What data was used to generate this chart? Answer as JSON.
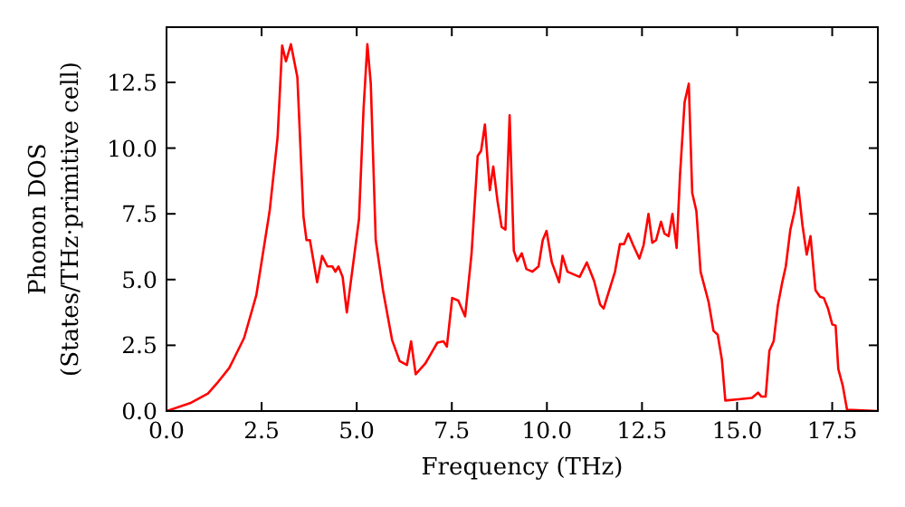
{
  "chart_data": {
    "type": "line",
    "xlabel": "Frequency (THz)",
    "ylabel": "Phonon DOS\n(States/THz·primitive cell)",
    "x": [
      0,
      0.62,
      1.09,
      1.33,
      1.65,
      2.04,
      2.36,
      2.71,
      2.92,
      3.04,
      3.14,
      3.27,
      3.44,
      3.6,
      3.68,
      3.77,
      3.96,
      4.09,
      4.23,
      4.36,
      4.44,
      4.52,
      4.63,
      4.74,
      5.06,
      5.18,
      5.28,
      5.37,
      5.5,
      5.69,
      5.93,
      6.13,
      6.32,
      6.43,
      6.55,
      6.8,
      6.96,
      7.12,
      7.28,
      7.37,
      7.51,
      7.67,
      7.85,
      8.02,
      8.18,
      8.27,
      8.37,
      8.5,
      8.59,
      8.7,
      8.81,
      8.91,
      9.02,
      9.13,
      9.22,
      9.34,
      9.46,
      9.62,
      9.78,
      9.89,
      9.99,
      10.13,
      10.32,
      10.41,
      10.54,
      10.86,
      11.05,
      11.24,
      11.4,
      11.49,
      11.79,
      11.92,
      12.03,
      12.14,
      12.27,
      12.43,
      12.54,
      12.67,
      12.77,
      12.87,
      13.0,
      13.09,
      13.2,
      13.3,
      13.41,
      13.5,
      13.62,
      13.73,
      13.82,
      13.93,
      14.04,
      14.25,
      14.38,
      14.49,
      14.6,
      14.69,
      15.04,
      15.39,
      15.55,
      15.64,
      15.75,
      15.85,
      15.96,
      16.07,
      16.18,
      16.28,
      16.4,
      16.51,
      16.61,
      16.72,
      16.83,
      16.93,
      17.06,
      17.18,
      17.28,
      17.39,
      17.5,
      17.59,
      17.66,
      17.78,
      17.89,
      18.69
    ],
    "series": [
      {
        "color": "#ff0000",
        "values": [
          0,
          0.3,
          0.67,
          1.06,
          1.64,
          2.78,
          4.4,
          7.6,
          10.4,
          13.9,
          13.3,
          13.95,
          12.7,
          7.4,
          6.5,
          6.5,
          4.9,
          5.9,
          5.5,
          5.5,
          5.3,
          5.5,
          5.1,
          3.75,
          7.3,
          11.5,
          13.95,
          12.45,
          6.5,
          4.6,
          2.7,
          1.9,
          1.75,
          2.65,
          1.4,
          1.8,
          2.2,
          2.6,
          2.65,
          2.45,
          4.3,
          4.2,
          3.6,
          6.0,
          9.7,
          9.9,
          10.9,
          8.4,
          9.3,
          8.0,
          7.0,
          6.9,
          11.25,
          6.1,
          5.7,
          6.0,
          5.4,
          5.3,
          5.5,
          6.5,
          6.85,
          5.65,
          4.9,
          5.9,
          5.3,
          5.1,
          5.65,
          4.95,
          4.05,
          3.9,
          5.3,
          6.35,
          6.35,
          6.75,
          6.3,
          5.8,
          6.3,
          7.5,
          6.4,
          6.5,
          7.2,
          6.75,
          6.65,
          7.5,
          6.2,
          9.0,
          11.75,
          12.45,
          8.3,
          7.6,
          5.3,
          4.15,
          3.05,
          2.9,
          1.95,
          0.4,
          0.45,
          0.5,
          0.7,
          0.55,
          0.55,
          2.3,
          2.65,
          4.0,
          4.85,
          5.5,
          6.9,
          7.6,
          8.5,
          7.05,
          5.95,
          6.65,
          4.6,
          4.35,
          4.3,
          3.9,
          3.3,
          3.25,
          1.6,
          0.95,
          0.05,
          0
        ]
      }
    ],
    "xlim": [
      0,
      18.7
    ],
    "ylim": [
      0,
      14.6
    ],
    "xticks": [
      {
        "value": 0,
        "label": "0.0"
      },
      {
        "value": 2.5,
        "label": "2.5"
      },
      {
        "value": 5,
        "label": "5.0"
      },
      {
        "value": 7.5,
        "label": "7.5"
      },
      {
        "value": 10,
        "label": "10.0"
      },
      {
        "value": 12.5,
        "label": "12.5"
      },
      {
        "value": 15,
        "label": "15.0"
      },
      {
        "value": 17.5,
        "label": "17.5"
      }
    ],
    "yticks": [
      {
        "value": 0,
        "label": "0.0"
      },
      {
        "value": 2.5,
        "label": "2.5"
      },
      {
        "value": 5,
        "label": "5.0"
      },
      {
        "value": 7.5,
        "label": "7.5"
      },
      {
        "value": 10,
        "label": "10.0"
      },
      {
        "value": 12.5,
        "label": "12.5"
      }
    ],
    "grid": false,
    "marker": "none",
    "line_style": "solid"
  }
}
